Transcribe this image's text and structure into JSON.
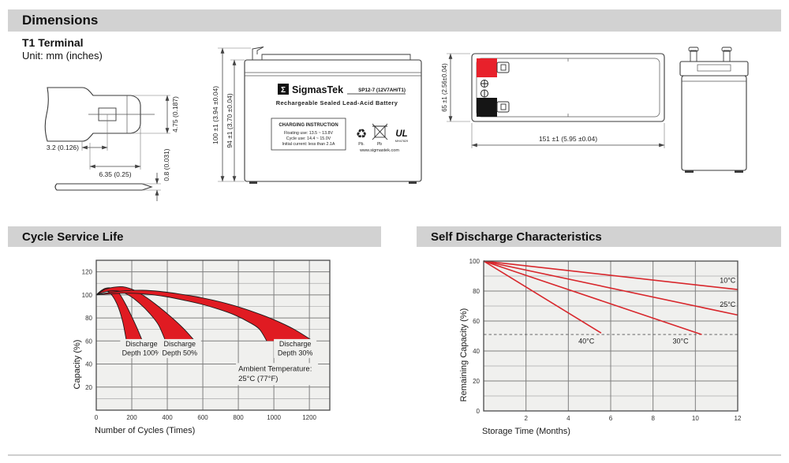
{
  "colors": {
    "accent_red": "#e01b22",
    "line_red": "#d8272c",
    "chart_bg": "#f0f0ee",
    "header_bar": "#d2d2d2",
    "terminal_positive": "#e8212b",
    "terminal_negative": "#151515"
  },
  "page": {
    "section_dimensions": "Dimensions",
    "terminal_type": "T1 Terminal",
    "unit_note": "Unit: mm (inches)",
    "section_cycle": "Cycle Service Life",
    "section_self_discharge": "Self Discharge Characteristics"
  },
  "drawings": {
    "terminal_detail": {
      "dim_tip_width": "4.75 (0.187)",
      "dim_hole_offset": "3.2 (0.126)",
      "dim_tab_width": "6.35 (0.25)",
      "dim_thickness": "0.8 (0.031)"
    },
    "front_view": {
      "dim_total_height": "100 ±1 (3.94 ±0.04)",
      "dim_case_height": "94 ±1 (3.70 ±0.04)",
      "label": {
        "logo_glyph": "Σ",
        "brand": "SigmasTek",
        "model": "SP12-7 (12V7AH/T1)",
        "subtitle": "Rechargeable Sealed Lead-Acid Battery",
        "charging_title": "CHARGING INSTRUCTION",
        "charging_lines": [
          "Floating use: 13.5 ~ 13.8V",
          "Cycle use: 14.4 ~ 15.0V",
          "Initial current: less than 2.1A"
        ],
        "recycle_icon": "♻",
        "recycle_caption": "Pb.",
        "bin_caption": "Pb",
        "ul_mark": "UL",
        "ul_number": "MH47829",
        "website": "www.sigmastek.com"
      }
    },
    "top_view": {
      "dim_length": "151 ±1 (5.95 ±0.04)",
      "dim_width": "65 ±1 (2.56±0.04)"
    }
  },
  "chart_data": [
    {
      "type": "area",
      "title": "Cycle Service Life",
      "xlabel": "Number of Cycles (Times)",
      "ylabel": "Capacity (%)",
      "xlim": [
        0,
        1315
      ],
      "ylim": [
        0,
        130
      ],
      "x_ticks": [
        0,
        200,
        400,
        600,
        800,
        1000,
        1200
      ],
      "y_ticks": [
        20,
        40,
        60,
        80,
        100,
        120
      ],
      "x_grid": [
        200,
        400,
        600,
        800,
        1000,
        1200
      ],
      "y_grid_major": [
        20,
        40,
        60,
        80,
        100,
        120
      ],
      "y_grid_minor": [
        10,
        70,
        90,
        110
      ],
      "grid": true,
      "legend_position": "none",
      "bands": [
        {
          "name": "Discharge Depth 100%",
          "label_lines": [
            "Discharge",
            "Depth 100%"
          ],
          "label_x": 255,
          "label_y": 55.5,
          "upper": [
            [
              0,
              100
            ],
            [
              30,
              104
            ],
            [
              60,
              106
            ],
            [
              95,
              105.5
            ],
            [
              130,
              101
            ],
            [
              165,
              92
            ],
            [
              200,
              81
            ],
            [
              230,
              71
            ],
            [
              260,
              60
            ]
          ],
          "lower": [
            [
              0,
              100
            ],
            [
              25,
              102.5
            ],
            [
              50,
              103.5
            ],
            [
              75,
              102
            ],
            [
              100,
              97
            ],
            [
              125,
              89
            ],
            [
              150,
              76
            ],
            [
              170,
              60
            ]
          ]
        },
        {
          "name": "Discharge Depth 50%",
          "label_lines": [
            "Discharge",
            "Depth 50%"
          ],
          "label_x": 470,
          "label_y": 55.5,
          "upper": [
            [
              0,
              100
            ],
            [
              45,
              104.5
            ],
            [
              95,
              106.5
            ],
            [
              150,
              107
            ],
            [
              215,
              104
            ],
            [
              280,
              98
            ],
            [
              350,
              90
            ],
            [
              420,
              81
            ],
            [
              490,
              71
            ],
            [
              555,
              60
            ]
          ],
          "lower": [
            [
              0,
              100
            ],
            [
              35,
              102
            ],
            [
              80,
              103.5
            ],
            [
              135,
              103
            ],
            [
              190,
              99
            ],
            [
              245,
              92.5
            ],
            [
              300,
              84
            ],
            [
              350,
              74
            ],
            [
              390,
              60
            ]
          ]
        },
        {
          "name": "Discharge Depth 30%",
          "label_lines": [
            "Discharge",
            "Depth 30%"
          ],
          "label_x": 1120,
          "label_y": 55.5,
          "upper": [
            [
              0,
              100
            ],
            [
              70,
              102
            ],
            [
              160,
              103.5
            ],
            [
              260,
              104
            ],
            [
              360,
              103
            ],
            [
              460,
              101
            ],
            [
              560,
              98.5
            ],
            [
              670,
              95
            ],
            [
              780,
              90.5
            ],
            [
              890,
              85
            ],
            [
              1000,
              78.5
            ],
            [
              1110,
              70.5
            ],
            [
              1220,
              60
            ]
          ],
          "lower": [
            [
              0,
              100
            ],
            [
              90,
              101
            ],
            [
              190,
              101.5
            ],
            [
              290,
              100.5
            ],
            [
              390,
              98.5
            ],
            [
              490,
              95.5
            ],
            [
              590,
              92
            ],
            [
              690,
              87.5
            ],
            [
              780,
              82.5
            ],
            [
              870,
              75.5
            ],
            [
              920,
              70
            ],
            [
              960,
              60
            ]
          ]
        }
      ],
      "annotations": [
        {
          "lines": [
            "Ambient Temperature:",
            "25°C (77°F)"
          ],
          "x": 800,
          "y": 34,
          "anchor": "start"
        }
      ]
    },
    {
      "type": "line",
      "title": "Self Discharge Characteristics",
      "xlabel": "Storage Time (Months)",
      "ylabel": "Remaining Capacity (%)",
      "xlim": [
        0,
        12
      ],
      "ylim": [
        0,
        100
      ],
      "x_ticks": [
        2,
        4,
        6,
        8,
        10,
        12
      ],
      "y_ticks": [
        0,
        20,
        40,
        60,
        80,
        100
      ],
      "x_grid": [
        2,
        4,
        6,
        8,
        10
      ],
      "y_grid_major": [
        20,
        40,
        60,
        80
      ],
      "y_grid_minor": [
        10,
        30,
        70,
        90
      ],
      "grid": true,
      "legend_position": "inline-labels",
      "dashed_line_y": 51,
      "series": [
        {
          "name": "40°C",
          "points": [
            [
              0,
              100
            ],
            [
              5.55,
              52
            ]
          ],
          "label_pos": [
            4.85,
            45
          ],
          "label_anchor": "middle"
        },
        {
          "name": "30°C",
          "points": [
            [
              0,
              100
            ],
            [
              10.3,
              51
            ]
          ],
          "label_pos": [
            9.3,
            45
          ],
          "label_anchor": "middle"
        },
        {
          "name": "25°C",
          "points": [
            [
              0,
              100
            ],
            [
              12,
              64
            ]
          ],
          "label_pos": [
            11.15,
            69.5
          ],
          "label_anchor": "start"
        },
        {
          "name": "10°C",
          "points": [
            [
              0,
              100
            ],
            [
              12,
              81
            ]
          ],
          "label_pos": [
            11.15,
            85.5
          ],
          "label_anchor": "start"
        }
      ]
    }
  ]
}
